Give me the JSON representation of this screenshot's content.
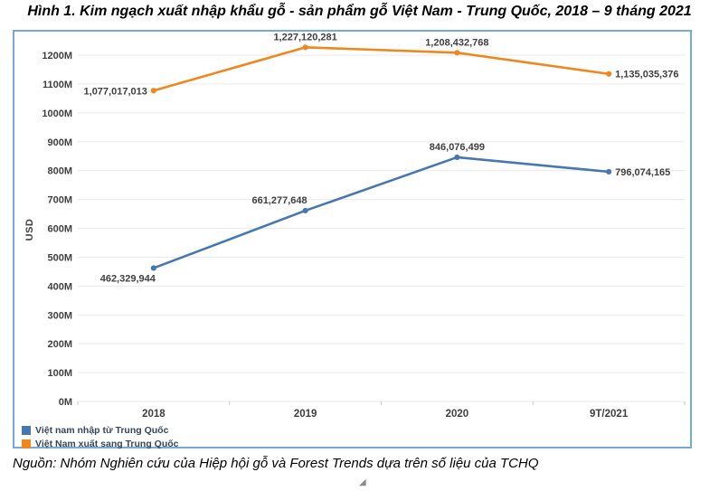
{
  "title": "Hình 1. Kim ngạch xuất nhập khẩu gỗ - sản phẩm gỗ Việt Nam - Trung Quốc, 2018 – 9 tháng 2021",
  "source": "Nguồn: Nhóm Nghiên cứu của Hiệp hội gỗ và Forest Trends dựa trên số liệu của TCHQ",
  "icons": {
    "resize_handle": "◢"
  },
  "colors": {
    "chart_border": "#74ABDB",
    "gridline": "#E9E9E9",
    "axis": "#C9C9C9",
    "tick_text": "#3F3F3F",
    "label_text": "#404040"
  },
  "chart_data": {
    "type": "line",
    "title": "",
    "xlabel": "",
    "ylabel": "USD",
    "categories": [
      "2018",
      "2019",
      "2020",
      "9T/2021"
    ],
    "series": [
      {
        "name": "Việt nam nhập từ Trung Quốc",
        "color": "#4777B0",
        "values": [
          462329944,
          661277648,
          846076499,
          796074165
        ],
        "labels": [
          "462,329,944",
          "661,277,648",
          "846,076,499",
          "796,074,165"
        ],
        "label_positions": [
          "below-left",
          "above-left",
          "above",
          "right"
        ]
      },
      {
        "name": "Việt Nam xuất sang Trung Quốc",
        "color": "#F0861E",
        "values": [
          1077017013,
          1227120281,
          1208432768,
          1135035376
        ],
        "labels": [
          "1,077,017,013",
          "1,227,120,281",
          "1,208,432,768",
          "1,135,035,376"
        ],
        "label_positions": [
          "left",
          "above",
          "above",
          "right"
        ]
      }
    ],
    "ylim": [
      0,
      1200000000
    ],
    "ytick_step": 100000000,
    "ytick_suffix": "M",
    "grid": true,
    "legend_position": "bottom-left"
  }
}
